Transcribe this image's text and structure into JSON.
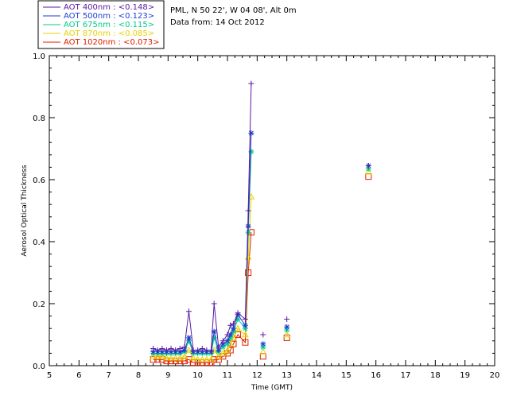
{
  "chart_data": {
    "type": "line",
    "xlabel": "Time (GMT)",
    "ylabel": "Aerosol Optical Thickness",
    "xlim": [
      5,
      20
    ],
    "ylim": [
      0,
      1.0
    ],
    "x_ticks": [
      "5",
      "6",
      "7",
      "8",
      "9",
      "10",
      "11",
      "12",
      "13",
      "14",
      "15",
      "16",
      "17",
      "18",
      "19",
      "20"
    ],
    "y_ticks": [
      "0.0",
      "0.2",
      "0.4",
      "0.6",
      "0.8",
      "1.0"
    ],
    "info_lines": [
      "PML, N 50 22', W 04 08', Alt 0m",
      "Data from: 14 Oct 2012"
    ],
    "legend_position": "top-left",
    "series": [
      {
        "name": "AOT  400nm : <0.148>",
        "color": "#5a1aa0",
        "marker": "plus",
        "x": [
          8.5,
          8.65,
          8.8,
          8.95,
          9.1,
          9.25,
          9.4,
          9.55,
          9.7,
          9.85,
          10.0,
          10.15,
          10.3,
          10.45,
          10.55,
          10.7,
          10.85,
          11.0,
          11.1,
          11.2,
          11.35,
          11.6,
          11.7,
          11.8
        ],
        "y": [
          0.055,
          0.05,
          0.055,
          0.05,
          0.055,
          0.05,
          0.055,
          0.06,
          0.175,
          0.05,
          0.05,
          0.055,
          0.05,
          0.05,
          0.2,
          0.06,
          0.08,
          0.1,
          0.13,
          0.135,
          0.17,
          0.15,
          0.5,
          0.91
        ],
        "points": [
          [
            12.2,
            0.1
          ],
          [
            13.0,
            0.15
          ],
          [
            15.75,
            0.645
          ]
        ]
      },
      {
        "name": "AOT  500nm : <0.123>",
        "color": "#1f3fcf",
        "marker": "star",
        "x": [
          8.5,
          8.65,
          8.8,
          8.95,
          9.1,
          9.25,
          9.4,
          9.55,
          9.7,
          9.85,
          10.0,
          10.15,
          10.3,
          10.45,
          10.55,
          10.7,
          10.85,
          11.0,
          11.1,
          11.2,
          11.35,
          11.6,
          11.7,
          11.8
        ],
        "y": [
          0.045,
          0.045,
          0.045,
          0.045,
          0.045,
          0.045,
          0.045,
          0.05,
          0.09,
          0.045,
          0.045,
          0.045,
          0.045,
          0.045,
          0.11,
          0.05,
          0.07,
          0.08,
          0.1,
          0.12,
          0.165,
          0.13,
          0.45,
          0.75
        ],
        "points": [
          [
            12.2,
            0.07
          ],
          [
            13.0,
            0.125
          ],
          [
            15.75,
            0.645
          ]
        ]
      },
      {
        "name": "AOT  675nm : <0.115>",
        "color": "#00cc88",
        "marker": "star",
        "x": [
          8.5,
          8.65,
          8.8,
          8.95,
          9.1,
          9.25,
          9.4,
          9.55,
          9.7,
          9.85,
          10.0,
          10.15,
          10.3,
          10.45,
          10.55,
          10.7,
          10.85,
          11.0,
          11.1,
          11.2,
          11.35,
          11.6,
          11.7,
          11.8
        ],
        "y": [
          0.04,
          0.04,
          0.04,
          0.04,
          0.04,
          0.04,
          0.04,
          0.045,
          0.08,
          0.04,
          0.04,
          0.04,
          0.04,
          0.04,
          0.09,
          0.045,
          0.06,
          0.07,
          0.09,
          0.11,
          0.15,
          0.12,
          0.43,
          0.69
        ],
        "points": [
          [
            12.2,
            0.06
          ],
          [
            13.0,
            0.115
          ],
          [
            15.75,
            0.635
          ]
        ]
      },
      {
        "name": "AOT  870nm : <0.085>",
        "color": "#e6d200",
        "marker": "triangle",
        "x": [
          8.5,
          8.65,
          8.8,
          8.95,
          9.1,
          9.25,
          9.4,
          9.55,
          9.7,
          9.85,
          10.0,
          10.15,
          10.3,
          10.45,
          10.55,
          10.7,
          10.85,
          11.0,
          11.1,
          11.2,
          11.35,
          11.6,
          11.7,
          11.8
        ],
        "y": [
          0.03,
          0.03,
          0.03,
          0.025,
          0.025,
          0.025,
          0.025,
          0.03,
          0.05,
          0.025,
          0.02,
          0.02,
          0.02,
          0.02,
          0.05,
          0.03,
          0.04,
          0.05,
          0.07,
          0.09,
          0.12,
          0.1,
          0.35,
          0.545
        ],
        "points": [
          [
            12.2,
            0.045
          ],
          [
            13.0,
            0.1
          ],
          [
            15.75,
            0.625
          ]
        ]
      },
      {
        "name": "AOT 1020nm : <0.073>",
        "color": "#e02000",
        "marker": "square",
        "x": [
          8.5,
          8.65,
          8.8,
          8.95,
          9.1,
          9.25,
          9.4,
          9.55,
          9.7,
          9.85,
          10.0,
          10.15,
          10.3,
          10.45,
          10.55,
          10.7,
          10.85,
          11.0,
          11.1,
          11.2,
          11.35,
          11.6,
          11.7,
          11.8
        ],
        "y": [
          0.02,
          0.02,
          0.02,
          0.015,
          0.015,
          0.015,
          0.015,
          0.015,
          0.02,
          0.01,
          0.01,
          0.01,
          0.01,
          0.01,
          0.02,
          0.02,
          0.03,
          0.04,
          0.05,
          0.07,
          0.1,
          0.075,
          0.3,
          0.43
        ],
        "points": [
          [
            12.2,
            0.03
          ],
          [
            13.0,
            0.09
          ],
          [
            15.75,
            0.61
          ]
        ]
      }
    ]
  }
}
